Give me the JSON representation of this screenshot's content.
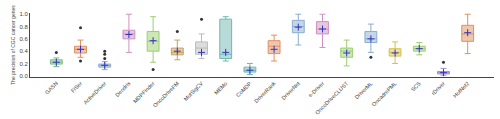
{
  "chart_data": {
    "type": "box",
    "ylabel": "The precision of CGC cancer genes",
    "categories": [
      "GASN",
      "FiSer",
      "ActiveDriver",
      "Dendrix",
      "MDPFinder",
      "OncoDriveFM",
      "MutSigCV",
      "MEMo",
      "CoMDP",
      "DriverRank",
      "DriverNet",
      "e-Driver",
      "OncoDriveCLUST",
      "DriverML",
      "OncadrePML",
      "SCS",
      "rDriver",
      "HotNet2"
    ],
    "colors": [
      "#7BBF8A",
      "#E09060",
      "#8BAED0",
      "#D090C0",
      "#9BCF70",
      "#C8A060",
      "#BBBBBB",
      "#70B8B0",
      "#70B8B0",
      "#E09060",
      "#8BAED0",
      "#D090C0",
      "#9BCF70",
      "#8BAED0",
      "#D4C050",
      "#9BCF70",
      "#A090C8",
      "#E09060"
    ],
    "q1": [
      0.19,
      0.37,
      0.14,
      0.6,
      0.4,
      0.34,
      0.35,
      0.28,
      0.06,
      0.36,
      0.7,
      0.68,
      0.3,
      0.54,
      0.32,
      0.4,
      0.03,
      0.56
    ],
    "median": [
      0.22,
      0.43,
      0.17,
      0.68,
      0.56,
      0.38,
      0.45,
      0.35,
      0.09,
      0.48,
      0.8,
      0.76,
      0.4,
      0.6,
      0.38,
      0.44,
      0.05,
      0.68
    ],
    "q3": [
      0.26,
      0.48,
      0.19,
      0.74,
      0.72,
      0.45,
      0.55,
      0.92,
      0.14,
      0.57,
      0.9,
      0.88,
      0.45,
      0.72,
      0.44,
      0.48,
      0.07,
      0.82
    ],
    "whislo": [
      0.15,
      0.3,
      0.1,
      0.38,
      0.22,
      0.26,
      0.28,
      0.24,
      0.02,
      0.24,
      0.5,
      0.46,
      0.16,
      0.38,
      0.2,
      0.34,
      0.01,
      0.36
    ],
    "whishi": [
      0.29,
      0.58,
      0.23,
      1.0,
      0.96,
      0.58,
      0.68,
      0.96,
      0.2,
      0.66,
      1.0,
      1.0,
      0.58,
      0.84,
      0.55,
      0.54,
      0.12,
      1.0
    ],
    "mean": {
      "values": [
        0.22,
        0.43,
        0.17,
        0.67,
        0.57,
        0.4,
        0.38,
        0.38,
        0.09,
        0.43,
        0.79,
        0.76,
        0.37,
        0.6,
        0.37,
        0.44,
        0.05,
        0.7
      ],
      "color": "#3333BB",
      "marker": "plus"
    },
    "fliers": {
      "values": [
        [
          0.38
        ],
        [
          0.78,
          0.24
        ],
        [
          0.35,
          0.4,
          0.28
        ],
        [],
        [
          0.1
        ],
        [
          0.72
        ],
        [
          0.92
        ],
        [],
        [],
        [],
        [],
        [],
        [],
        [
          0.3
        ],
        [],
        [],
        [
          0.22
        ],
        []
      ],
      "color": "#333333"
    },
    "ylim": [
      -0.02,
      1.02
    ],
    "yticks": [
      {
        "value": 0.0,
        "label": "0.0"
      },
      0.2,
      0.4,
      0.6,
      0.8,
      {
        "value": 1.0,
        "label": "1.0"
      }
    ],
    "grid": false
  }
}
